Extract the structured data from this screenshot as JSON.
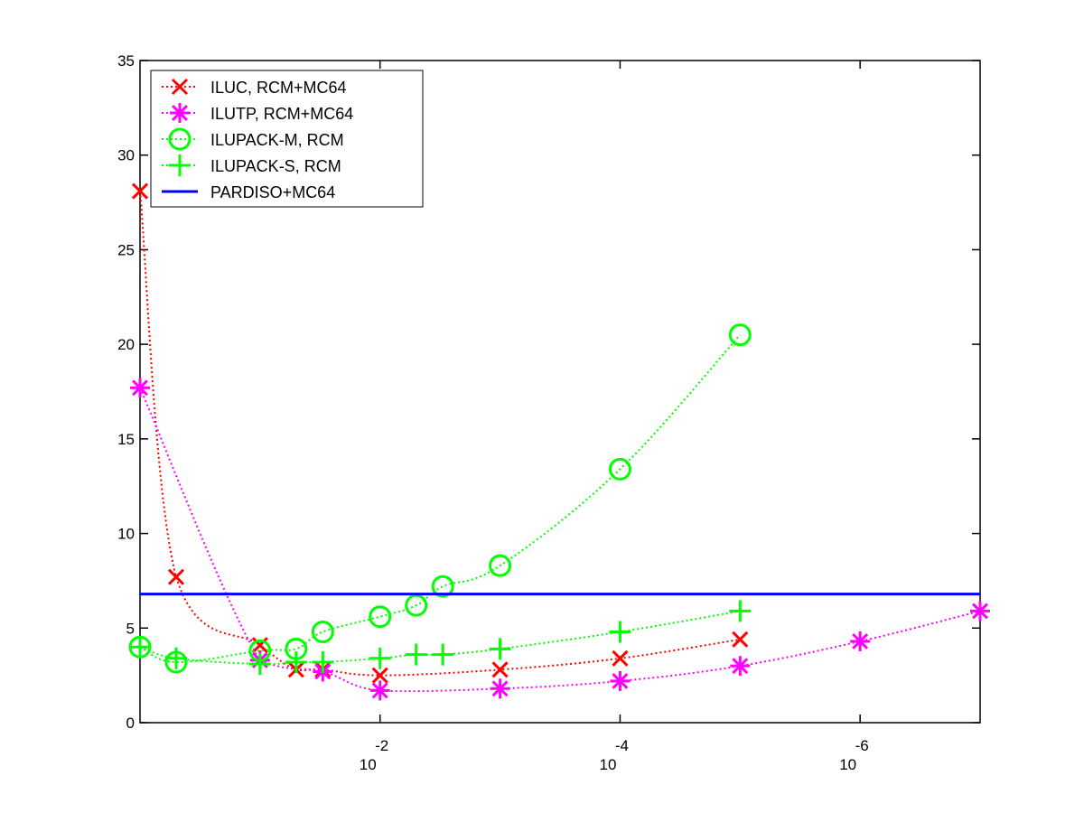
{
  "chart_data": {
    "type": "line",
    "title": "",
    "xlabel": "",
    "ylabel": "",
    "x_scale": "log-reversed",
    "xlim": [
      1,
      1e-07
    ],
    "ylim": [
      0,
      35
    ],
    "grid": false,
    "legend_position": "top-left",
    "y_ticks": [
      "0",
      "5",
      "10",
      "15",
      "20",
      "25",
      "30",
      "35"
    ],
    "x_ticks": [
      {
        "base": "10",
        "exponent": "-2"
      },
      {
        "base": "10",
        "exponent": "-4"
      },
      {
        "base": "10",
        "exponent": "-6"
      }
    ],
    "series": [
      {
        "name": "ILUC, RCM+MC64",
        "color": "#ff0000",
        "marker": "x",
        "line_style": "dotted",
        "points": [
          [
            1,
            28.1
          ],
          [
            0.5,
            7.7
          ],
          [
            0.1,
            4.1
          ],
          [
            0.05,
            2.8
          ],
          [
            0.03,
            2.8
          ],
          [
            0.01,
            2.5
          ],
          [
            0.001,
            2.8
          ],
          [
            0.0001,
            3.4
          ],
          [
            1e-05,
            4.4
          ]
        ]
      },
      {
        "name": "ILUTP, RCM+MC64",
        "color": "#ff00ff",
        "marker": "asterisk",
        "line_style": "dotted",
        "points": [
          [
            1,
            17.7
          ],
          [
            0.1,
            3.3
          ],
          [
            0.03,
            2.7
          ],
          [
            0.01,
            1.7
          ],
          [
            0.001,
            1.8
          ],
          [
            0.0001,
            2.2
          ],
          [
            1e-05,
            3.0
          ],
          [
            1e-06,
            4.3
          ],
          [
            1e-07,
            5.9
          ]
        ]
      },
      {
        "name": "ILUPACK-M, RCM",
        "color": "#00ff00",
        "marker": "circle",
        "line_style": "dotted",
        "points": [
          [
            1,
            4.0
          ],
          [
            0.5,
            3.2
          ],
          [
            0.1,
            3.8
          ],
          [
            0.05,
            3.9
          ],
          [
            0.03,
            4.8
          ],
          [
            0.01,
            5.6
          ],
          [
            0.005,
            6.2
          ],
          [
            0.003,
            7.2
          ],
          [
            0.001,
            8.3
          ],
          [
            0.0001,
            13.4
          ],
          [
            1e-05,
            20.5
          ]
        ]
      },
      {
        "name": "ILUPACK-S, RCM",
        "color": "#00ff00",
        "marker": "plus",
        "line_style": "dotted",
        "points": [
          [
            1,
            4.0
          ],
          [
            0.5,
            3.4
          ],
          [
            0.1,
            3.1
          ],
          [
            0.05,
            3.2
          ],
          [
            0.03,
            3.2
          ],
          [
            0.01,
            3.4
          ],
          [
            0.005,
            3.6
          ],
          [
            0.003,
            3.6
          ],
          [
            0.001,
            3.9
          ],
          [
            0.0001,
            4.8
          ],
          [
            1e-05,
            5.9
          ]
        ]
      },
      {
        "name": "PARDISO+MC64",
        "color": "#0000ff",
        "marker": "none",
        "line_style": "solid",
        "points": [
          [
            1,
            6.8
          ],
          [
            1e-07,
            6.8
          ]
        ]
      }
    ]
  }
}
